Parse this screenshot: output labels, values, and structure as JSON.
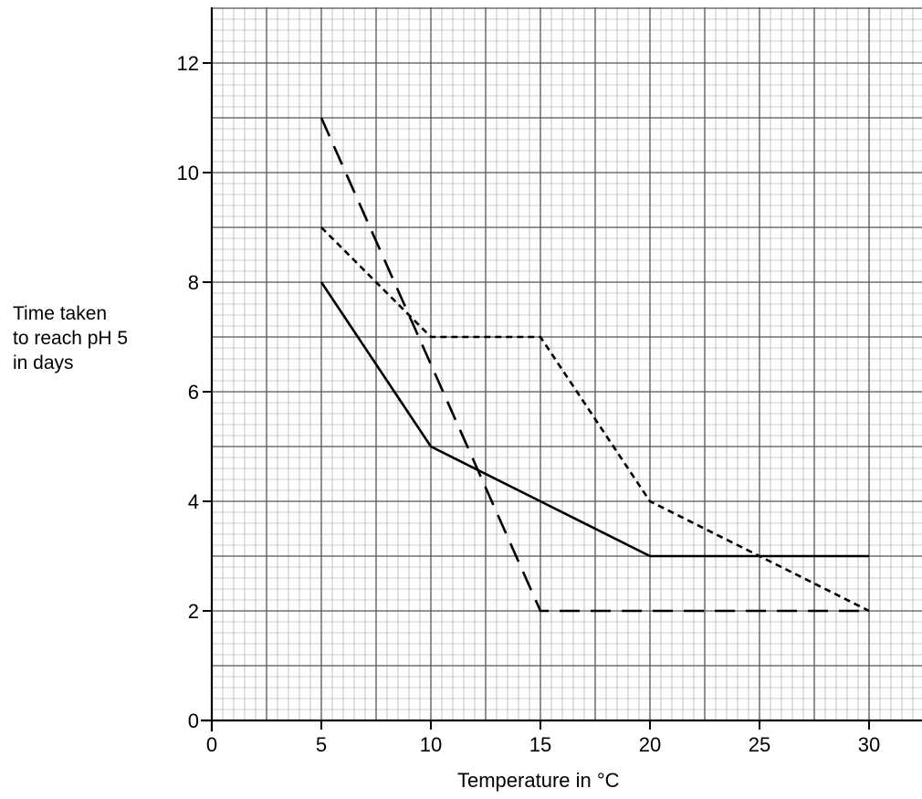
{
  "chart_data": {
    "type": "line",
    "xlabel": "Temperature in °C",
    "ylabel_lines": [
      "Time taken",
      "to reach pH 5",
      "in days"
    ],
    "xlim": [
      0,
      32.5
    ],
    "ylim": [
      0,
      13
    ],
    "x_ticks": [
      0,
      5,
      10,
      15,
      20,
      25,
      30
    ],
    "y_ticks": [
      0,
      2,
      4,
      6,
      8,
      10,
      12
    ],
    "grid": true,
    "series": [
      {
        "style": "solid",
        "x": [
          5,
          10,
          15,
          20,
          30
        ],
        "y": [
          8,
          5,
          4,
          3,
          3
        ]
      },
      {
        "style": "short-dash",
        "x": [
          5,
          10,
          15,
          20,
          30
        ],
        "y": [
          9,
          7,
          7,
          4,
          2
        ]
      },
      {
        "style": "long-dash",
        "x": [
          5,
          15,
          30
        ],
        "y": [
          11,
          2,
          2
        ]
      }
    ]
  }
}
